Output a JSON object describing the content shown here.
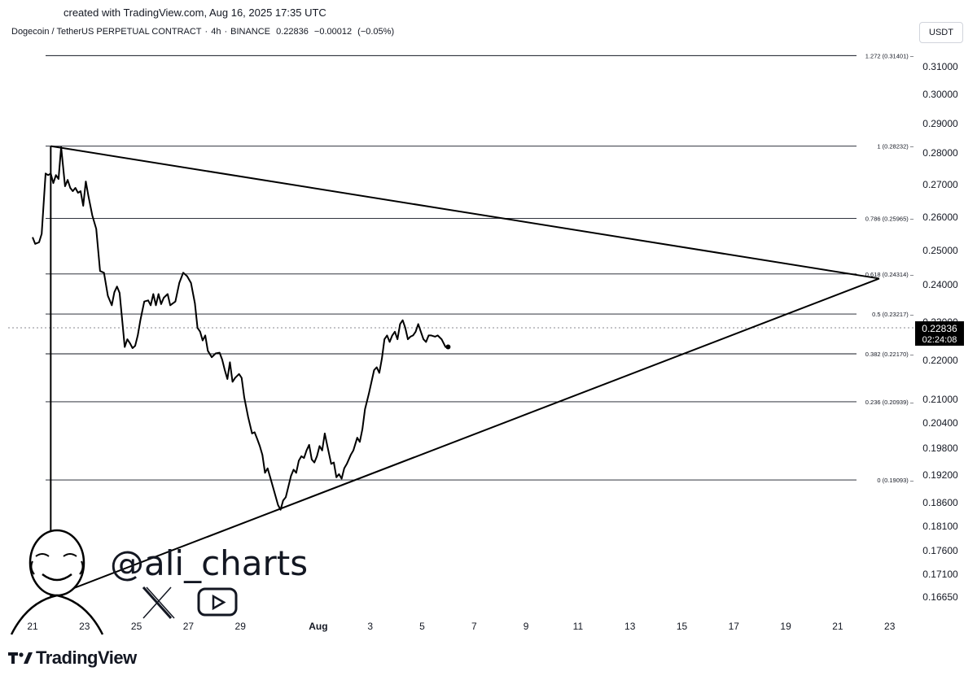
{
  "header": {
    "created_caption": "created with TradingView.com, Aug 16, 2025 17:35 UTC",
    "symbol": "Dogecoin / TetherUS PERPETUAL CONTRACT",
    "interval": "4h",
    "exchange": "BINANCE",
    "last": "0.22836",
    "change": "−0.00012",
    "change_pct": "(−0.05%)",
    "sep": "·"
  },
  "unit_label": "USDT",
  "price_tag": {
    "price": "0.22836",
    "countdown": "02:24:08"
  },
  "watermark": {
    "handle": "@ali_charts",
    "social_icons": [
      "x-icon",
      "youtube-icon"
    ]
  },
  "branding": {
    "logo_text": "TradingView"
  },
  "colors": {
    "line": "#000000",
    "grid": "#131722",
    "tag_bg": "#000000",
    "tag_text": "#ffffff"
  },
  "chart_data": {
    "type": "line",
    "x_axis": {
      "ticks": [
        {
          "label": "21",
          "day": 21
        },
        {
          "label": "23",
          "day": 23
        },
        {
          "label": "25",
          "day": 25
        },
        {
          "label": "27",
          "day": 27
        },
        {
          "label": "29",
          "day": 29
        },
        {
          "label": "Aug",
          "day": 32
        },
        {
          "label": "3",
          "day": 34
        },
        {
          "label": "5",
          "day": 36
        },
        {
          "label": "7",
          "day": 38
        },
        {
          "label": "9",
          "day": 40
        },
        {
          "label": "11",
          "day": 42
        },
        {
          "label": "13",
          "day": 44
        },
        {
          "label": "15",
          "day": 46
        },
        {
          "label": "17",
          "day": 48
        },
        {
          "label": "19",
          "day": 50
        },
        {
          "label": "21",
          "day": 52
        },
        {
          "label": "23",
          "day": 54
        }
      ]
    },
    "y_axis": {
      "ticks": [
        "0.31000",
        "0.30000",
        "0.29000",
        "0.28000",
        "0.27000",
        "0.26000",
        "0.25000",
        "0.24000",
        "0.23000",
        "0.22000",
        "0.21000",
        "0.20400",
        "0.19800",
        "0.19200",
        "0.18600",
        "0.18100",
        "0.17600",
        "0.17100",
        "0.16650"
      ]
    },
    "fib_levels": [
      {
        "label": "1.272 (0.31401)",
        "value": 0.31401
      },
      {
        "label": "1 (0.28232)",
        "value": 0.28232
      },
      {
        "label": "0.786 (0.25965)",
        "value": 0.25965
      },
      {
        "label": "0.618 (0.24314)",
        "value": 0.24314
      },
      {
        "label": "0.5 (0.23217)",
        "value": 0.23217
      },
      {
        "label": "0.382 (0.22170)",
        "value": 0.2217
      },
      {
        "label": "0.236 (0.20939)",
        "value": 0.20939
      },
      {
        "label": "0 (0.19093)",
        "value": 0.19093
      }
    ],
    "trendlines": [
      {
        "name": "upper",
        "from": {
          "day": 21.7,
          "price": 0.28232
        },
        "to": {
          "day": 53.6,
          "price": 0.2418
        }
      },
      {
        "name": "lower",
        "from": {
          "day": 21.7,
          "price": 0.1665
        },
        "to": {
          "day": 53.6,
          "price": 0.2418
        }
      },
      {
        "name": "vertical",
        "from": {
          "day": 21.7,
          "price": 0.28232
        },
        "to": {
          "day": 21.7,
          "price": 0.1665
        }
      }
    ],
    "series": [
      {
        "points": [
          [
            21.0,
            0.254
          ],
          [
            21.1,
            0.252
          ],
          [
            21.25,
            0.2525
          ],
          [
            21.35,
            0.255
          ],
          [
            21.5,
            0.2735
          ],
          [
            21.6,
            0.273
          ],
          [
            21.7,
            0.2735
          ],
          [
            21.8,
            0.2705
          ],
          [
            21.9,
            0.273
          ],
          [
            22.0,
            0.2718
          ],
          [
            22.1,
            0.282
          ],
          [
            22.25,
            0.2695
          ],
          [
            22.35,
            0.2715
          ],
          [
            22.45,
            0.269
          ],
          [
            22.55,
            0.268
          ],
          [
            22.65,
            0.269
          ],
          [
            22.75,
            0.2675
          ],
          [
            22.85,
            0.268
          ],
          [
            22.95,
            0.2635
          ],
          [
            23.05,
            0.271
          ],
          [
            23.15,
            0.2665
          ],
          [
            23.3,
            0.2605
          ],
          [
            23.45,
            0.2565
          ],
          [
            23.6,
            0.244
          ],
          [
            23.75,
            0.2435
          ],
          [
            23.9,
            0.237
          ],
          [
            24.05,
            0.2345
          ],
          [
            24.15,
            0.238
          ],
          [
            24.25,
            0.2395
          ],
          [
            24.35,
            0.2378
          ],
          [
            24.45,
            0.2305
          ],
          [
            24.55,
            0.2235
          ],
          [
            24.65,
            0.2255
          ],
          [
            24.75,
            0.2245
          ],
          [
            24.85,
            0.2232
          ],
          [
            24.95,
            0.2238
          ],
          [
            25.05,
            0.2265
          ],
          [
            25.15,
            0.2305
          ],
          [
            25.3,
            0.2355
          ],
          [
            25.45,
            0.2358
          ],
          [
            25.55,
            0.2345
          ],
          [
            25.65,
            0.2375
          ],
          [
            25.75,
            0.2345
          ],
          [
            25.85,
            0.2375
          ],
          [
            25.95,
            0.2348
          ],
          [
            26.05,
            0.2365
          ],
          [
            26.2,
            0.2375
          ],
          [
            26.3,
            0.2345
          ],
          [
            26.5,
            0.2355
          ],
          [
            26.65,
            0.2405
          ],
          [
            26.8,
            0.2435
          ],
          [
            26.95,
            0.2425
          ],
          [
            27.1,
            0.2405
          ],
          [
            27.25,
            0.235
          ],
          [
            27.35,
            0.2285
          ],
          [
            27.45,
            0.2275
          ],
          [
            27.55,
            0.2252
          ],
          [
            27.65,
            0.2265
          ],
          [
            27.75,
            0.2225
          ],
          [
            27.9,
            0.2208
          ],
          [
            28.05,
            0.2218
          ],
          [
            28.2,
            0.222
          ],
          [
            28.3,
            0.2202
          ],
          [
            28.4,
            0.2175
          ],
          [
            28.5,
            0.2152
          ],
          [
            28.6,
            0.2195
          ],
          [
            28.7,
            0.2145
          ],
          [
            28.8,
            0.2155
          ],
          [
            28.95,
            0.2165
          ],
          [
            29.05,
            0.2155
          ],
          [
            29.15,
            0.2105
          ],
          [
            29.3,
            0.2055
          ],
          [
            29.45,
            0.2015
          ],
          [
            29.55,
            0.2018
          ],
          [
            29.65,
            0.2002
          ],
          [
            29.75,
            0.1985
          ],
          [
            29.85,
            0.1965
          ],
          [
            29.95,
            0.1925
          ],
          [
            30.05,
            0.1935
          ],
          [
            30.15,
            0.1915
          ],
          [
            30.3,
            0.1885
          ],
          [
            30.45,
            0.1855
          ],
          [
            30.55,
            0.1845
          ],
          [
            30.65,
            0.1865
          ],
          [
            30.75,
            0.1872
          ],
          [
            30.85,
            0.1895
          ],
          [
            30.95,
            0.1918
          ],
          [
            31.05,
            0.1932
          ],
          [
            31.15,
            0.1925
          ],
          [
            31.25,
            0.1952
          ],
          [
            31.35,
            0.1962
          ],
          [
            31.45,
            0.1958
          ],
          [
            31.55,
            0.1975
          ],
          [
            31.65,
            0.1988
          ],
          [
            31.75,
            0.1955
          ],
          [
            31.85,
            0.1948
          ],
          [
            31.95,
            0.1962
          ],
          [
            32.05,
            0.1985
          ],
          [
            32.15,
            0.1975
          ],
          [
            32.25,
            0.2015
          ],
          [
            32.35,
            0.1985
          ],
          [
            32.5,
            0.1945
          ],
          [
            32.6,
            0.1948
          ],
          [
            32.7,
            0.1915
          ],
          [
            32.8,
            0.1922
          ],
          [
            32.9,
            0.1912
          ],
          [
            33.0,
            0.1935
          ],
          [
            33.1,
            0.1945
          ],
          [
            33.25,
            0.1965
          ],
          [
            33.35,
            0.1975
          ],
          [
            33.5,
            0.2005
          ],
          [
            33.6,
            0.1995
          ],
          [
            33.7,
            0.2025
          ],
          [
            33.8,
            0.2075
          ],
          [
            33.95,
            0.2115
          ],
          [
            34.05,
            0.2145
          ],
          [
            34.15,
            0.2175
          ],
          [
            34.25,
            0.2182
          ],
          [
            34.35,
            0.2168
          ],
          [
            34.45,
            0.2205
          ],
          [
            34.55,
            0.2255
          ],
          [
            34.65,
            0.2265
          ],
          [
            34.75,
            0.2248
          ],
          [
            34.85,
            0.2265
          ],
          [
            34.95,
            0.2275
          ],
          [
            35.05,
            0.2255
          ],
          [
            35.15,
            0.2295
          ],
          [
            35.25,
            0.2305
          ],
          [
            35.35,
            0.2285
          ],
          [
            35.45,
            0.2255
          ],
          [
            35.55,
            0.2262
          ],
          [
            35.65,
            0.2265
          ],
          [
            35.75,
            0.2275
          ],
          [
            35.85,
            0.2295
          ],
          [
            35.95,
            0.2275
          ],
          [
            36.05,
            0.2255
          ],
          [
            36.15,
            0.2248
          ],
          [
            36.25,
            0.2265
          ],
          [
            36.35,
            0.2265
          ],
          [
            36.5,
            0.2262
          ],
          [
            36.6,
            0.2265
          ],
          [
            36.75,
            0.2255
          ],
          [
            36.9,
            0.2235
          ],
          [
            37.0,
            0.2235
          ]
        ]
      }
    ]
  }
}
